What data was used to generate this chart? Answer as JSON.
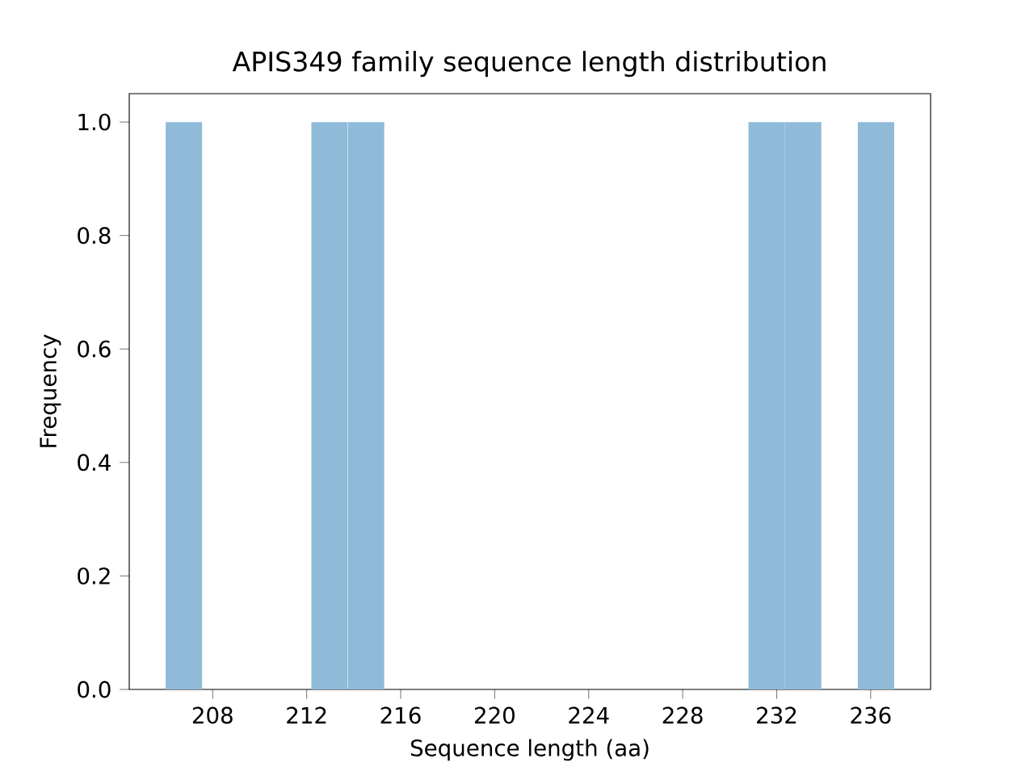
{
  "chart_data": {
    "type": "histogram",
    "title": "APIS349 family sequence length distribution",
    "xlabel": "Sequence length (aa)",
    "ylabel": "Frequency",
    "bins": [
      206,
      207.55,
      209.1,
      210.65,
      212.2,
      213.75,
      215.3,
      216.85,
      218.4,
      219.95,
      221.5,
      223.05,
      224.6,
      226.15,
      227.7,
      229.25,
      230.8,
      232.35,
      233.9,
      235.45,
      237
    ],
    "values": [
      1,
      0,
      0,
      0,
      1,
      1,
      0,
      0,
      0,
      0,
      0,
      0,
      0,
      0,
      0,
      0,
      1,
      1,
      0,
      1
    ],
    "color": "#8fbbd9",
    "xlim": [
      204.45,
      238.55
    ],
    "xticks": [
      208,
      212,
      216,
      220,
      224,
      228,
      232,
      236
    ],
    "ylim": [
      0,
      1.05
    ],
    "yticks": [
      {
        "value": 0,
        "label": "0.0"
      },
      {
        "value": 0.2,
        "label": "0.2"
      },
      {
        "value": 0.4,
        "label": "0.4"
      },
      {
        "value": 0.6,
        "label": "0.6"
      },
      {
        "value": 0.8,
        "label": "0.8"
      },
      {
        "value": 1.0,
        "label": "1.0"
      }
    ]
  }
}
